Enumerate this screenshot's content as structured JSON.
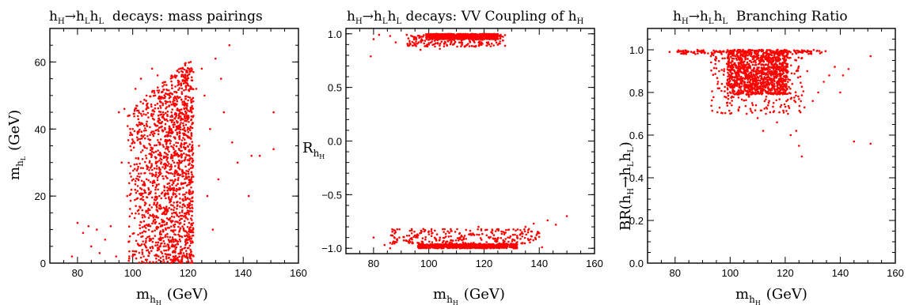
{
  "colors": {
    "points": "#ff0000",
    "axes": "#000000",
    "background": "#ffffff"
  },
  "chart_data": [
    {
      "type": "scatter",
      "title": {
        "main": "h",
        "s1": "H",
        "arrow": "→h",
        "s2": "L",
        "mid": "h",
        "s3": "L",
        "rest": "  decays: mass pairings"
      },
      "xlabel": {
        "main": "m",
        "sub": "h",
        "subsub": "H",
        "rest": "(GeV)"
      },
      "ylabel": {
        "main": "m",
        "sub": "h",
        "subsub": "L",
        "rest": "(GeV)"
      },
      "xlim": [
        70,
        160
      ],
      "ylim": [
        0,
        70
      ],
      "x_ticks": [
        "80",
        "100",
        "120",
        "140",
        "160"
      ],
      "y_ticks": [
        "0",
        "20",
        "40",
        "60"
      ],
      "series": [
        {
          "points": [
            [
              78,
              2
            ],
            [
              80,
              12
            ],
            [
              82,
              9
            ],
            [
              84,
              11
            ],
            [
              85,
              5
            ],
            [
              87,
              10
            ],
            [
              88,
              3
            ],
            [
              90,
              7
            ],
            [
              92,
              11
            ],
            [
              94,
              2
            ],
            [
              95,
              45
            ],
            [
              97,
              46
            ],
            [
              96,
              30
            ],
            [
              98,
              20
            ],
            [
              99,
              8
            ],
            [
              101,
              52
            ],
            [
              103,
              55
            ],
            [
              105,
              50
            ],
            [
              104,
              35
            ],
            [
              102,
              25
            ],
            [
              107,
              58
            ],
            [
              109,
              56
            ],
            [
              111,
              45
            ],
            [
              113,
              38
            ],
            [
              115,
              30
            ],
            [
              117,
              22
            ],
            [
              119,
              59
            ],
            [
              118,
              48
            ],
            [
              116,
              40
            ],
            [
              114,
              16
            ],
            [
              112,
              10
            ],
            [
              110,
              5
            ],
            [
              108,
              12
            ],
            [
              106,
              8
            ],
            [
              104,
              2
            ],
            [
              121,
              60
            ],
            [
              122,
              57
            ],
            [
              123,
              52
            ],
            [
              125,
              58
            ],
            [
              126,
              50
            ],
            [
              128,
              40
            ],
            [
              130,
              61
            ],
            [
              132,
              55
            ],
            [
              135,
              65
            ],
            [
              136,
              36
            ],
            [
              138,
              30
            ],
            [
              142,
              20
            ],
            [
              143,
              32
            ],
            [
              146,
              32
            ],
            [
              151,
              45
            ],
            [
              151,
              34
            ],
            [
              127,
              20
            ],
            [
              129,
              10
            ],
            [
              131,
              25
            ],
            [
              133,
              45
            ],
            [
              124,
              35
            ],
            [
              120,
              44
            ],
            [
              119,
              31
            ],
            [
              117,
              15
            ],
            [
              100,
              40
            ]
          ]
        }
      ],
      "dense_regions": [
        {
          "x": [
            98,
            122
          ],
          "y": [
            0,
            60
          ],
          "count": 1600,
          "upper_edge": "y <= 0.7*(x-98)+45",
          "density": "increasing toward x=118"
        }
      ]
    },
    {
      "type": "scatter",
      "title": {
        "main": "h",
        "s1": "H",
        "arrow": "→h",
        "s2": "L",
        "mid": "h",
        "s3": "L",
        "rest": " decays: VV Coupling of h",
        "s4": "H"
      },
      "xlabel": {
        "main": "m",
        "sub": "h",
        "subsub": "H",
        "rest": "(GeV)"
      },
      "ylabel": {
        "main": "R",
        "sub": "h",
        "subsub": "H"
      },
      "xlim": [
        70,
        160
      ],
      "ylim": [
        -1.05,
        1.05
      ],
      "x_ticks": [
        "80",
        "100",
        "120",
        "140",
        "160"
      ],
      "y_ticks": [
        "−1.0",
        "−0.5",
        "0.0",
        "0.5",
        "1.0"
      ],
      "series": [
        {
          "points": [
            [
              79,
              0.79
            ],
            [
              80,
              0.95
            ],
            [
              82,
              0.99
            ],
            [
              86,
              0.98
            ],
            [
              88,
              0.92
            ],
            [
              92,
              0.99
            ],
            [
              95,
              0.97
            ],
            [
              97,
              0.85
            ],
            [
              100,
              0.9
            ],
            [
              104,
              0.86
            ],
            [
              108,
              0.92
            ],
            [
              113,
              0.88
            ],
            [
              118,
              0.95
            ],
            [
              122,
              0.97
            ],
            [
              126,
              0.99
            ],
            [
              80,
              -0.9
            ],
            [
              84,
              -0.97
            ],
            [
              86,
              -1.0
            ],
            [
              88,
              -0.85
            ],
            [
              92,
              -0.93
            ],
            [
              95,
              -0.88
            ],
            [
              98,
              -0.82
            ],
            [
              103,
              -0.87
            ],
            [
              108,
              -0.84
            ],
            [
              112,
              -0.89
            ],
            [
              118,
              -0.8
            ],
            [
              123,
              -0.86
            ],
            [
              128,
              -0.83
            ],
            [
              132,
              -0.9
            ],
            [
              135,
              -0.8
            ],
            [
              138,
              -0.77
            ],
            [
              140,
              -0.86
            ],
            [
              143,
              -0.74
            ],
            [
              146,
              -0.78
            ],
            [
              150,
              -0.7
            ],
            [
              134,
              -0.95
            ],
            [
              130,
              -0.97
            ],
            [
              141,
              -0.99
            ]
          ]
        }
      ],
      "dense_regions": [
        {
          "x": [
            99,
            125
          ],
          "y": [
            0.95,
            1.0
          ],
          "count": 700,
          "density": "solid band"
        },
        {
          "x": [
            92,
            128
          ],
          "y": [
            0.88,
            0.99
          ],
          "count": 200,
          "density": "sparse below band"
        },
        {
          "x": [
            96,
            132
          ],
          "y": [
            -1.0,
            -0.96
          ],
          "count": 700,
          "density": "solid band"
        },
        {
          "x": [
            86,
            140
          ],
          "y": [
            -0.96,
            -0.82
          ],
          "count": 260,
          "density": "sparse above band"
        }
      ]
    },
    {
      "type": "scatter",
      "title": {
        "main": "h",
        "s1": "H",
        "arrow": "→h",
        "s2": "L",
        "mid": "h",
        "s3": "L",
        "rest": "  Branching Ratio"
      },
      "xlabel": {
        "main": "m",
        "sub": "h",
        "subsub": "H",
        "rest": "(GeV)"
      },
      "ylabel": {
        "text": "BR(h",
        "s1": "H",
        "arrow": "→h",
        "s2": "L",
        "mid": "h",
        "s3": "L",
        "end": ")"
      },
      "xlim": [
        70,
        160
      ],
      "ylim": [
        0.0,
        1.1
      ],
      "x_ticks": [
        "80",
        "100",
        "120",
        "140",
        "160"
      ],
      "y_ticks": [
        "0.0",
        "0.2",
        "0.4",
        "0.6",
        "0.8",
        "1.0"
      ],
      "series": [
        {
          "points": [
            [
              78,
              0.99
            ],
            [
              81,
              0.99
            ],
            [
              84,
              0.98
            ],
            [
              87,
              0.99
            ],
            [
              90,
              0.99
            ],
            [
              93,
              0.97
            ],
            [
              95,
              0.96
            ],
            [
              96,
              0.9
            ],
            [
              97,
              0.84
            ],
            [
              98,
              0.78
            ],
            [
              100,
              0.75
            ],
            [
              103,
              0.72
            ],
            [
              106,
              0.7
            ],
            [
              110,
              0.68
            ],
            [
              113,
              0.7
            ],
            [
              117,
              0.66
            ],
            [
              121,
              0.7
            ],
            [
              124,
              0.62
            ],
            [
              125,
              0.55
            ],
            [
              126,
              0.5
            ],
            [
              122,
              0.6
            ],
            [
              127,
              0.73
            ],
            [
              130,
              0.76
            ],
            [
              132,
              0.8
            ],
            [
              134,
              0.85
            ],
            [
              136,
              0.88
            ],
            [
              138,
              0.92
            ],
            [
              140,
              0.8
            ],
            [
              141,
              0.88
            ],
            [
              143,
              0.91
            ],
            [
              145,
              0.57
            ],
            [
              151,
              0.56
            ],
            [
              151,
              0.97
            ],
            [
              128,
              0.9
            ],
            [
              124,
              0.95
            ],
            [
              112,
              0.62
            ],
            [
              108,
              0.75
            ],
            [
              101,
              0.8
            ]
          ]
        }
      ],
      "dense_regions": [
        {
          "x": [
            99,
            121
          ],
          "y": [
            0.79,
            1.0
          ],
          "count": 1100,
          "density": "solid block"
        },
        {
          "x": [
            93,
            127
          ],
          "y": [
            0.7,
            1.0
          ],
          "count": 260,
          "density": "sparse halo"
        },
        {
          "x": [
            80,
            135
          ],
          "y": [
            0.98,
            1.0
          ],
          "count": 150,
          "density": "top band"
        }
      ]
    }
  ]
}
